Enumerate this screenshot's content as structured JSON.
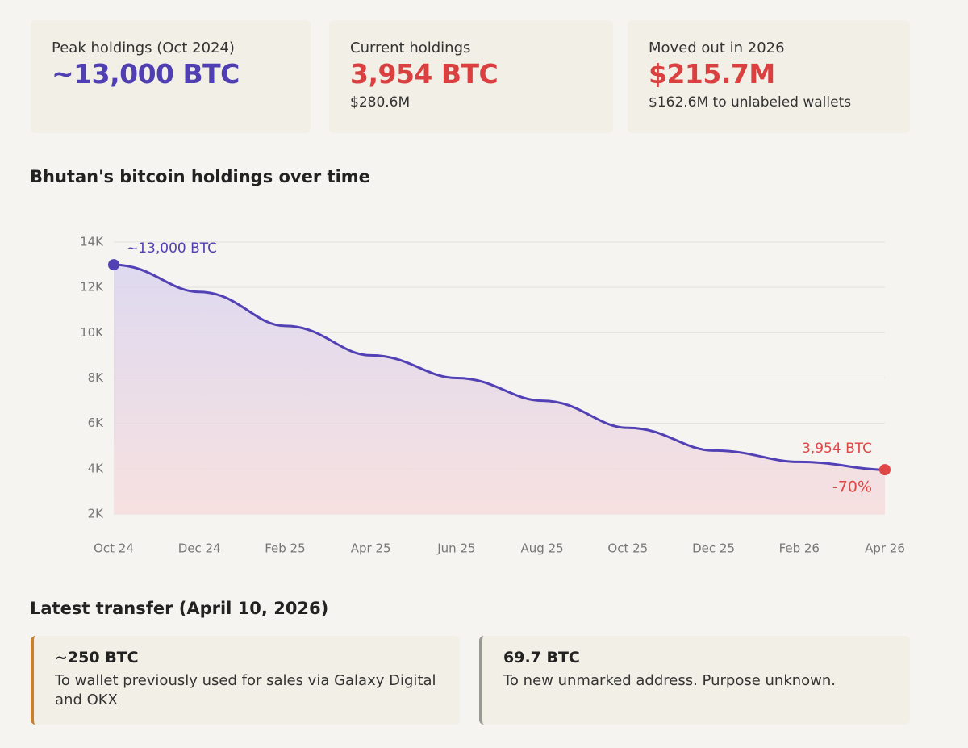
{
  "cards": [
    {
      "label": "Peak holdings (Oct 2024)",
      "value": "~13,000 BTC",
      "color": "#4f3fb3"
    },
    {
      "label": "Current holdings",
      "value": "3,954 BTC",
      "sub": "$280.6M",
      "color": "#d9403f"
    },
    {
      "label": "Moved out in 2026",
      "value": "$215.7M",
      "sub": "$162.6M to unlabeled wallets",
      "color": "#d9403f"
    }
  ],
  "chart_data": {
    "type": "line",
    "title": "Bhutan's bitcoin holdings over time",
    "categories": [
      "Oct 24",
      "Dec 24",
      "Feb 25",
      "Apr 25",
      "Jun 25",
      "Aug 25",
      "Oct 25",
      "Dec 25",
      "Feb 26",
      "Apr 26"
    ],
    "values": [
      13000,
      11800,
      10300,
      9000,
      8000,
      7000,
      5800,
      4800,
      4300,
      3954
    ],
    "value_labels": [
      "~13,000 BTC",
      null,
      null,
      null,
      null,
      null,
      null,
      null,
      null,
      "3,954 BTC"
    ],
    "annotation": "-70%",
    "color": "#5241b5",
    "end_color": "#e04646",
    "ylim": [
      2000,
      14000
    ],
    "yticks": [
      {
        "value": 2000,
        "label": "2K"
      },
      {
        "value": 4000,
        "label": "4K"
      },
      {
        "value": 6000,
        "label": "6K"
      },
      {
        "value": 8000,
        "label": "8K"
      },
      {
        "value": 10000,
        "label": "10K"
      },
      {
        "value": 12000,
        "label": "12K"
      },
      {
        "value": 14000,
        "label": "14K"
      }
    ],
    "grid": true
  },
  "transfers": {
    "title": "Latest transfer (April 10, 2026)",
    "items": [
      {
        "amount": "~250 BTC",
        "description": "To wallet previously used for sales via Galaxy Digital and OKX",
        "color": "#c9812f"
      },
      {
        "amount": "69.7 BTC",
        "description": "To new unmarked address. Purpose unknown.",
        "color": "#9a9893"
      }
    ]
  }
}
